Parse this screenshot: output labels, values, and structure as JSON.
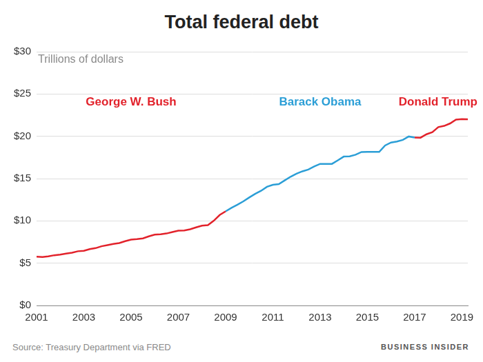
{
  "chart_data": {
    "type": "line",
    "title": "Total federal debt",
    "y_label": "Trillions of dollars",
    "source": "Source: Treasury Department via FRED",
    "credit": "BUSINESS INSIDER",
    "series": [
      {
        "name": "George W. Bush",
        "color": "#e2222b",
        "x": [
          2001,
          2001.25,
          2001.5,
          2001.75,
          2002,
          2002.25,
          2002.5,
          2002.75,
          2003,
          2003.25,
          2003.5,
          2003.75,
          2004,
          2004.25,
          2004.5,
          2004.75,
          2005,
          2005.25,
          2005.5,
          2005.75,
          2006,
          2006.25,
          2006.5,
          2006.75,
          2007,
          2007.25,
          2007.5,
          2007.75,
          2008,
          2008.25,
          2008.5,
          2008.75,
          2009
        ],
        "values": [
          5.77,
          5.73,
          5.81,
          5.94,
          6.01,
          6.13,
          6.23,
          6.41,
          6.46,
          6.67,
          6.78,
          7.0,
          7.13,
          7.27,
          7.38,
          7.6,
          7.78,
          7.84,
          7.93,
          8.17,
          8.37,
          8.42,
          8.51,
          8.68,
          8.85,
          8.87,
          9.01,
          9.23,
          9.44,
          9.49,
          10.02,
          10.7,
          11.13
        ]
      },
      {
        "name": "Barack Obama",
        "color": "#2b9ed6",
        "x": [
          2009,
          2009.25,
          2009.5,
          2009.75,
          2010,
          2010.25,
          2010.5,
          2010.75,
          2011,
          2011.25,
          2011.5,
          2011.75,
          2012,
          2012.25,
          2012.5,
          2012.75,
          2013,
          2013.25,
          2013.5,
          2013.75,
          2014,
          2014.25,
          2014.5,
          2014.75,
          2015,
          2015.25,
          2015.5,
          2015.75,
          2016,
          2016.25,
          2016.5,
          2016.75,
          2017
        ],
        "values": [
          11.13,
          11.55,
          11.91,
          12.31,
          12.77,
          13.2,
          13.56,
          14.03,
          14.27,
          14.34,
          14.79,
          15.22,
          15.58,
          15.86,
          16.07,
          16.43,
          16.74,
          16.74,
          16.74,
          17.16,
          17.6,
          17.63,
          17.82,
          18.14,
          18.15,
          18.15,
          18.15,
          18.92,
          19.26,
          19.38,
          19.57,
          19.98,
          19.85
        ]
      },
      {
        "name": "Donald Trump",
        "color": "#e2222b",
        "x": [
          2017,
          2017.25,
          2017.5,
          2017.75,
          2018,
          2018.25,
          2018.5,
          2018.75,
          2019,
          2019.25
        ],
        "values": [
          19.85,
          19.84,
          20.24,
          20.49,
          21.09,
          21.23,
          21.52,
          21.97,
          22.03,
          22.02
        ]
      }
    ],
    "xlim": [
      2001,
      2019.25
    ],
    "xticks": [
      2001,
      2003,
      2005,
      2007,
      2009,
      2011,
      2013,
      2015,
      2017,
      2019
    ],
    "ylim": [
      0,
      30
    ],
    "yticks": [
      {
        "value": 0,
        "label": "$0"
      },
      {
        "value": 5,
        "label": "$5"
      },
      {
        "value": 10,
        "label": "$10"
      },
      {
        "value": 15,
        "label": "$15"
      },
      {
        "value": 20,
        "label": "$20"
      },
      {
        "value": 25,
        "label": "$25"
      },
      {
        "value": 30,
        "label": "$30"
      }
    ],
    "grid": true
  }
}
